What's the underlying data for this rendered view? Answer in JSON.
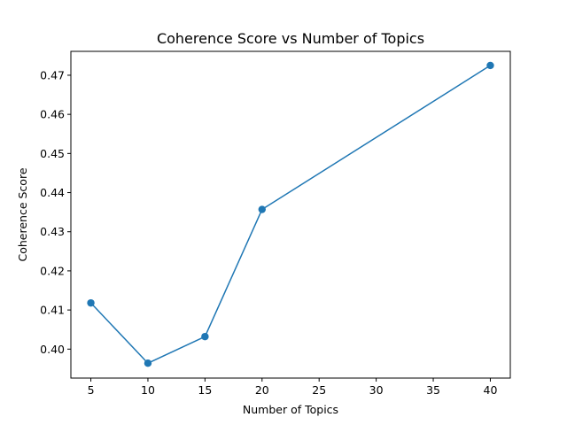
{
  "chart_data": {
    "type": "line",
    "title": "Coherence Score vs Number of Topics",
    "xlabel": "Number of Topics",
    "ylabel": "Coherence Score",
    "xlim": [
      3.25,
      41.75
    ],
    "ylim": [
      0.3926,
      0.4761
    ],
    "xticks": [
      5,
      10,
      15,
      20,
      25,
      30,
      35,
      40
    ],
    "yticks": [
      0.4,
      0.41,
      0.42,
      0.43,
      0.44,
      0.45,
      0.46,
      0.47
    ],
    "ytick_labels": [
      "0.40",
      "0.41",
      "0.42",
      "0.43",
      "0.44",
      "0.45",
      "0.46",
      "0.47"
    ],
    "grid": false,
    "series": [
      {
        "color": "#1f77b4",
        "marker": "circle",
        "x": [
          5,
          10,
          15,
          20,
          40
        ],
        "y": [
          0.4118,
          0.3964,
          0.4032,
          0.4357,
          0.4725
        ]
      }
    ]
  }
}
